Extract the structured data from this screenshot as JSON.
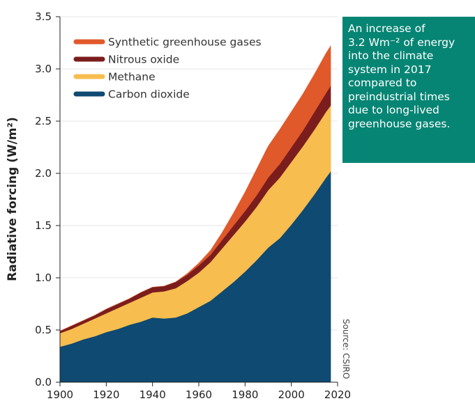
{
  "chart_data": {
    "type": "area",
    "stacked": true,
    "ylabel": "Radiative forcing (W/m²)",
    "xlim": [
      1900,
      2020
    ],
    "ylim": [
      0,
      3.5
    ],
    "x_ticks": [
      1900,
      1920,
      1940,
      1960,
      1980,
      2000,
      2020
    ],
    "y_ticks": [
      "0.0",
      "0.5",
      "1.0",
      "1.5",
      "2.0",
      "2.5",
      "3.0",
      "3.5"
    ],
    "legend_position": "top-left",
    "x": [
      1900,
      1905,
      1910,
      1915,
      1920,
      1925,
      1930,
      1935,
      1940,
      1945,
      1950,
      1955,
      1960,
      1965,
      1970,
      1975,
      1980,
      1985,
      1990,
      1995,
      2000,
      2005,
      2010,
      2015,
      2017
    ],
    "series": [
      {
        "name": "Carbon dioxide",
        "color": "#0e4a72",
        "values": [
          0.34,
          0.37,
          0.41,
          0.44,
          0.48,
          0.51,
          0.55,
          0.58,
          0.62,
          0.61,
          0.62,
          0.66,
          0.72,
          0.78,
          0.87,
          0.96,
          1.06,
          1.17,
          1.29,
          1.38,
          1.51,
          1.65,
          1.8,
          1.96,
          2.02
        ]
      },
      {
        "name": "Methane",
        "color": "#f7bd4f",
        "values": [
          0.13,
          0.14,
          0.15,
          0.17,
          0.18,
          0.2,
          0.21,
          0.23,
          0.24,
          0.26,
          0.28,
          0.31,
          0.33,
          0.37,
          0.41,
          0.45,
          0.48,
          0.51,
          0.55,
          0.58,
          0.6,
          0.61,
          0.62,
          0.63,
          0.63
        ]
      },
      {
        "name": "Nitrous oxide",
        "color": "#7b1d1d",
        "values": [
          0.02,
          0.03,
          0.03,
          0.03,
          0.04,
          0.04,
          0.04,
          0.05,
          0.05,
          0.05,
          0.06,
          0.06,
          0.07,
          0.07,
          0.08,
          0.09,
          0.1,
          0.11,
          0.12,
          0.13,
          0.14,
          0.15,
          0.17,
          0.18,
          0.19
        ]
      },
      {
        "name": "Synthetic greenhouse gases",
        "color": "#e0592a",
        "values": [
          0.0,
          0.0,
          0.0,
          0.0,
          0.0,
          0.0,
          0.0,
          0.0,
          0.0,
          0.0,
          0.0,
          0.01,
          0.02,
          0.04,
          0.07,
          0.12,
          0.18,
          0.25,
          0.3,
          0.33,
          0.34,
          0.35,
          0.36,
          0.38,
          0.38
        ]
      }
    ],
    "legend_order": [
      "Synthetic greenhouse gases",
      "Nitrous oxide",
      "Methane",
      "Carbon dioxide"
    ],
    "annotation": "Source: CSIRO"
  },
  "callout": {
    "text": "An increase of\n3.2 Wm⁻² of energy\ninto the climate\nsystem in 2017\ncompared to\npreindustrial times\ndue to long-lived\ngreenhouse gases.",
    "background": "#078574"
  }
}
